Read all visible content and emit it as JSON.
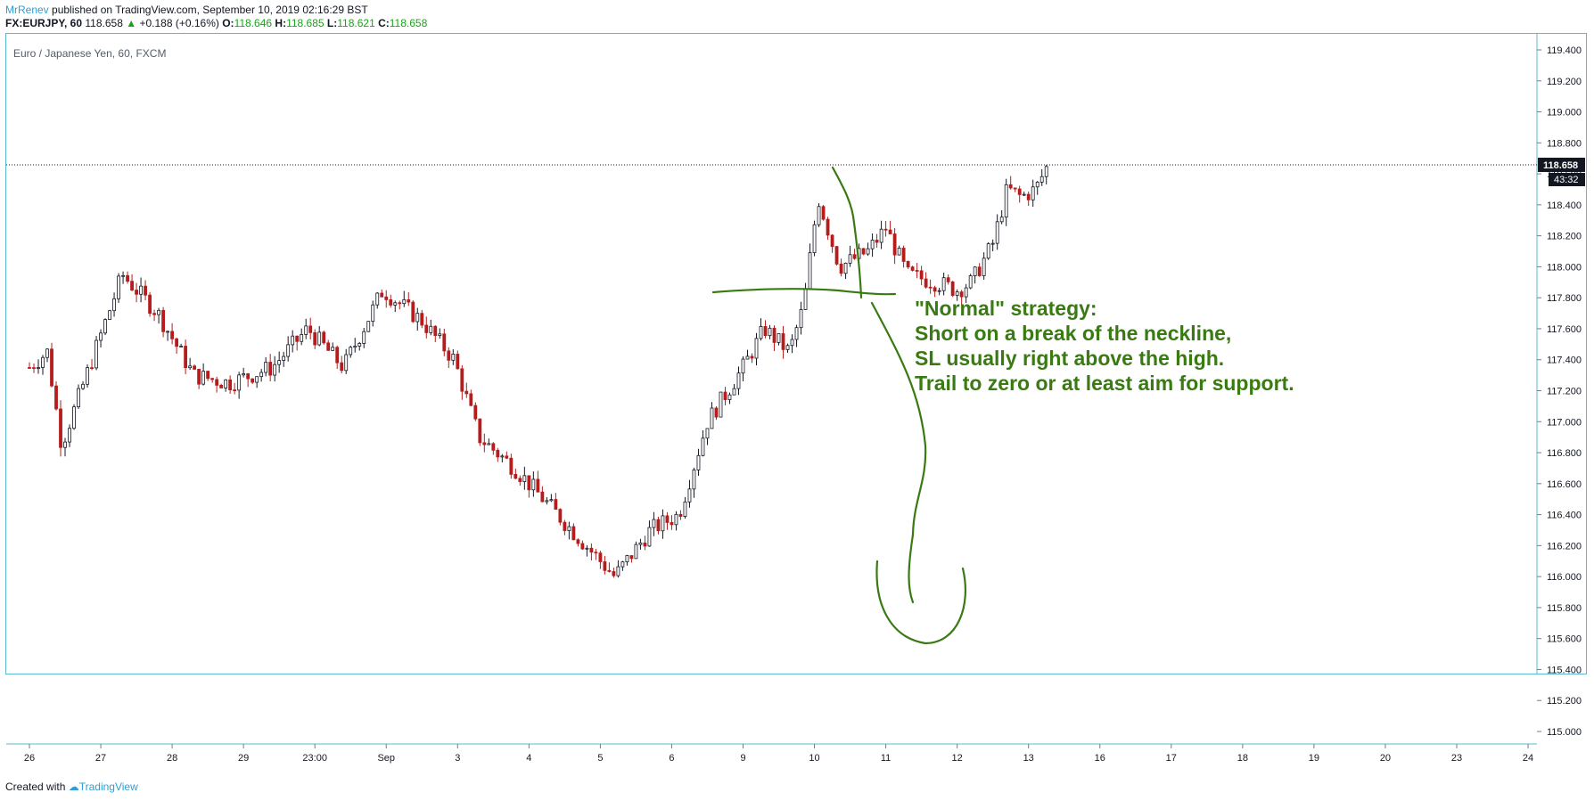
{
  "header": {
    "author": "MrRenev",
    "published": " published on TradingView.com, September 10, 2019 02:16:29 BST",
    "symbol": "FX:EURJPY, 60",
    "last": "118.658",
    "change": "+0.188 (+0.16%)",
    "o_label": "O:",
    "o": "118.646",
    "h_label": "H:",
    "h": "118.685",
    "l_label": "L:",
    "l": "118.621",
    "c_label": "C:",
    "c": "118.658"
  },
  "footer": {
    "created": "Created with",
    "brand": "TradingView"
  },
  "colors": {
    "up": "#131722",
    "down": "#b71c1c",
    "annotation": "#3a7a13",
    "frame": "#5bb9d3"
  },
  "chart_data": {
    "type": "candlestick",
    "title": "Euro / Japanese Yen, 60, FXCM",
    "price_axis": {
      "min": 115.0,
      "max": 119.4,
      "ticks": [
        "119.400",
        "119.200",
        "119.000",
        "118.800",
        "118.600",
        "118.400",
        "118.200",
        "118.000",
        "117.800",
        "117.600",
        "117.400",
        "117.200",
        "117.000",
        "116.800",
        "116.600",
        "116.400",
        "116.200",
        "116.000",
        "115.800",
        "115.600",
        "115.400",
        "115.200",
        "115.000"
      ],
      "last_price_label": "118.658",
      "countdown_label": "43:32"
    },
    "time_axis": {
      "labels": [
        "26",
        "27",
        "28",
        "29",
        "23:00",
        "Sep",
        "3",
        "4",
        "5",
        "6",
        "9",
        "10",
        "11",
        "12",
        "13",
        "16",
        "17",
        "18",
        "19",
        "20",
        "23",
        "24"
      ]
    },
    "price_path": [
      {
        "t": 0.0,
        "p": 117.35
      },
      {
        "t": 0.25,
        "p": 117.45
      },
      {
        "t": 0.45,
        "p": 116.85
      },
      {
        "t": 0.8,
        "p": 117.3
      },
      {
        "t": 1.3,
        "p": 117.95
      },
      {
        "t": 1.8,
        "p": 117.7
      },
      {
        "t": 2.3,
        "p": 117.3
      },
      {
        "t": 2.8,
        "p": 117.25
      },
      {
        "t": 3.4,
        "p": 117.35
      },
      {
        "t": 3.9,
        "p": 117.6
      },
      {
        "t": 4.4,
        "p": 117.35
      },
      {
        "t": 4.95,
        "p": 117.85
      },
      {
        "t": 5.5,
        "p": 117.65
      },
      {
        "t": 5.95,
        "p": 117.4
      },
      {
        "t": 6.3,
        "p": 116.9
      },
      {
        "t": 6.8,
        "p": 116.7
      },
      {
        "t": 7.2,
        "p": 116.5
      },
      {
        "t": 7.6,
        "p": 116.3
      },
      {
        "t": 8.2,
        "p": 116.0
      },
      {
        "t": 8.7,
        "p": 116.3
      },
      {
        "t": 9.1,
        "p": 116.4
      },
      {
        "t": 9.5,
        "p": 117.0
      },
      {
        "t": 10.0,
        "p": 117.35
      },
      {
        "t": 10.3,
        "p": 117.6
      },
      {
        "t": 10.65,
        "p": 117.45
      },
      {
        "t": 10.85,
        "p": 117.75
      },
      {
        "t": 11.05,
        "p": 118.45
      },
      {
        "t": 11.35,
        "p": 118.0
      },
      {
        "t": 11.75,
        "p": 118.1
      },
      {
        "t": 12.0,
        "p": 118.25
      },
      {
        "t": 12.3,
        "p": 117.95
      },
      {
        "t": 12.7,
        "p": 117.9
      },
      {
        "t": 13.0,
        "p": 117.85
      },
      {
        "t": 13.2,
        "p": 117.9
      },
      {
        "t": 13.5,
        "p": 118.15
      },
      {
        "t": 13.7,
        "p": 118.5
      },
      {
        "t": 13.9,
        "p": 118.45
      },
      {
        "t": 14.1,
        "p": 118.5
      },
      {
        "t": 14.27,
        "p": 118.658
      }
    ],
    "annotation_text": [
      "\"Normal\" strategy:",
      "Short on a break of the neckline,",
      "SL usually right above the high.",
      "Trail to zero or at least aim for support."
    ]
  }
}
